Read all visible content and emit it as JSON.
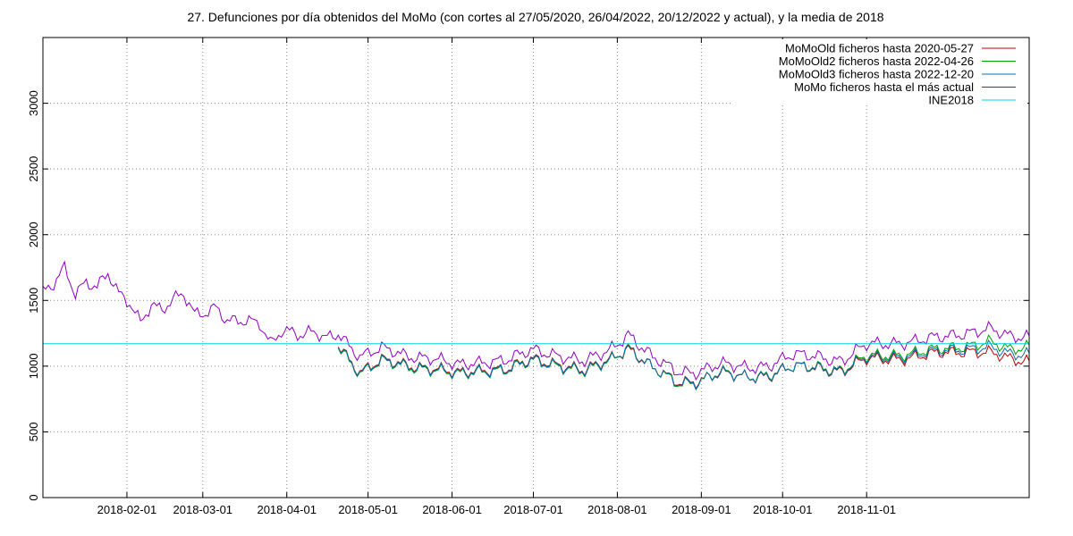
{
  "chart_data": {
    "type": "line",
    "title": "27. Defunciones por día obtenidos del MoMo (con cortes al 27/05/2020, 26/04/2022, 20/12/2022 y actual), y la media de 2018",
    "xlabel": "",
    "ylabel": "",
    "x_range": [
      "2018-01-01",
      "2018-12-31"
    ],
    "ylim": [
      0,
      3500
    ],
    "y_ticks": [
      0,
      500,
      1000,
      1500,
      2000,
      2500,
      3000
    ],
    "x_ticks": [
      "2018-02-01",
      "2018-03-01",
      "2018-04-01",
      "2018-05-01",
      "2018-06-01",
      "2018-07-01",
      "2018-08-01",
      "2018-09-01",
      "2018-10-01",
      "2018-11-01"
    ],
    "grid": true,
    "legend_position": "top-right",
    "series": [
      {
        "name": "MoMoOld ficheros hasta 2020-05-27",
        "color": "#c00000",
        "points": [
          [
            "2018-04-20",
            1160
          ],
          [
            "2018-04-28",
            960
          ],
          [
            "2018-05-06",
            1040
          ],
          [
            "2018-05-15",
            1010
          ],
          [
            "2018-05-24",
            990
          ],
          [
            "2018-06-03",
            940
          ],
          [
            "2018-06-13",
            980
          ],
          [
            "2018-06-22",
            980
          ],
          [
            "2018-07-01",
            1050
          ],
          [
            "2018-07-10",
            1020
          ],
          [
            "2018-07-20",
            960
          ],
          [
            "2018-07-29",
            1050
          ],
          [
            "2018-08-05",
            1140
          ],
          [
            "2018-08-14",
            980
          ],
          [
            "2018-08-23",
            880
          ],
          [
            "2018-08-30",
            890
          ],
          [
            "2018-09-08",
            940
          ],
          [
            "2018-09-17",
            920
          ],
          [
            "2018-09-26",
            930
          ],
          [
            "2018-10-05",
            990
          ],
          [
            "2018-10-14",
            990
          ],
          [
            "2018-10-23",
            960
          ],
          [
            "2018-11-01",
            1050
          ],
          [
            "2018-11-10",
            1060
          ],
          [
            "2018-11-20",
            1070
          ],
          [
            "2018-11-29",
            1100
          ],
          [
            "2018-12-08",
            1120
          ],
          [
            "2018-12-16",
            1100
          ],
          [
            "2018-12-24",
            1050
          ],
          [
            "2018-12-31",
            1040
          ]
        ]
      },
      {
        "name": "MoMoOld2 ficheros hasta 2022-04-26",
        "color": "#00a000",
        "points": [
          [
            "2018-04-20",
            1150
          ],
          [
            "2018-04-28",
            950
          ],
          [
            "2018-05-06",
            1030
          ],
          [
            "2018-05-15",
            1000
          ],
          [
            "2018-05-24",
            980
          ],
          [
            "2018-06-03",
            930
          ],
          [
            "2018-06-13",
            970
          ],
          [
            "2018-06-22",
            970
          ],
          [
            "2018-07-01",
            1040
          ],
          [
            "2018-07-10",
            1010
          ],
          [
            "2018-07-20",
            950
          ],
          [
            "2018-07-29",
            1040
          ],
          [
            "2018-08-05",
            1150
          ],
          [
            "2018-08-14",
            980
          ],
          [
            "2018-08-23",
            870
          ],
          [
            "2018-08-30",
            880
          ],
          [
            "2018-09-08",
            950
          ],
          [
            "2018-09-17",
            920
          ],
          [
            "2018-09-26",
            940
          ],
          [
            "2018-10-05",
            990
          ],
          [
            "2018-10-14",
            1000
          ],
          [
            "2018-10-23",
            970
          ],
          [
            "2018-11-01",
            1070
          ],
          [
            "2018-11-10",
            1090
          ],
          [
            "2018-11-20",
            1100
          ],
          [
            "2018-11-29",
            1130
          ],
          [
            "2018-12-08",
            1160
          ],
          [
            "2018-12-16",
            1180
          ],
          [
            "2018-12-24",
            1120
          ],
          [
            "2018-12-31",
            1160
          ]
        ]
      },
      {
        "name": "MoMoOld3 ficheros hasta 2022-12-20",
        "color": "#0070b0",
        "points": [
          [
            "2018-04-20",
            1155
          ],
          [
            "2018-04-28",
            955
          ],
          [
            "2018-05-06",
            1035
          ],
          [
            "2018-05-15",
            1005
          ],
          [
            "2018-05-24",
            985
          ],
          [
            "2018-06-03",
            935
          ],
          [
            "2018-06-13",
            975
          ],
          [
            "2018-06-22",
            975
          ],
          [
            "2018-07-01",
            1045
          ],
          [
            "2018-07-10",
            1015
          ],
          [
            "2018-07-20",
            955
          ],
          [
            "2018-07-29",
            1045
          ],
          [
            "2018-08-05",
            1150
          ],
          [
            "2018-08-14",
            980
          ],
          [
            "2018-08-23",
            875
          ],
          [
            "2018-08-30",
            885
          ],
          [
            "2018-09-08",
            945
          ],
          [
            "2018-09-17",
            920
          ],
          [
            "2018-09-26",
            935
          ],
          [
            "2018-10-05",
            990
          ],
          [
            "2018-10-14",
            995
          ],
          [
            "2018-10-23",
            965
          ],
          [
            "2018-11-01",
            1060
          ],
          [
            "2018-11-10",
            1075
          ],
          [
            "2018-11-20",
            1085
          ],
          [
            "2018-11-29",
            1115
          ],
          [
            "2018-12-08",
            1140
          ],
          [
            "2018-12-16",
            1140
          ],
          [
            "2018-12-24",
            1085
          ],
          [
            "2018-12-31",
            1100
          ]
        ]
      },
      {
        "name": "MoMo ficheros hasta el más actual",
        "color": "#9000c0",
        "points": [
          [
            "2018-01-01",
            1550
          ],
          [
            "2018-01-05",
            1620
          ],
          [
            "2018-01-09",
            1750
          ],
          [
            "2018-01-13",
            1560
          ],
          [
            "2018-01-17",
            1650
          ],
          [
            "2018-01-21",
            1600
          ],
          [
            "2018-01-25",
            1700
          ],
          [
            "2018-01-29",
            1540
          ],
          [
            "2018-02-02",
            1480
          ],
          [
            "2018-02-06",
            1340
          ],
          [
            "2018-02-10",
            1480
          ],
          [
            "2018-02-14",
            1430
          ],
          [
            "2018-02-18",
            1500
          ],
          [
            "2018-02-22",
            1540
          ],
          [
            "2018-02-26",
            1390
          ],
          [
            "2018-03-02",
            1410
          ],
          [
            "2018-03-06",
            1460
          ],
          [
            "2018-03-10",
            1350
          ],
          [
            "2018-03-14",
            1340
          ],
          [
            "2018-03-18",
            1330
          ],
          [
            "2018-03-22",
            1320
          ],
          [
            "2018-03-26",
            1170
          ],
          [
            "2018-03-30",
            1280
          ],
          [
            "2018-04-03",
            1270
          ],
          [
            "2018-04-07",
            1230
          ],
          [
            "2018-04-11",
            1260
          ],
          [
            "2018-04-15",
            1200
          ],
          [
            "2018-04-20",
            1250
          ],
          [
            "2018-04-28",
            1080
          ],
          [
            "2018-05-06",
            1130
          ],
          [
            "2018-05-15",
            1080
          ],
          [
            "2018-05-24",
            1070
          ],
          [
            "2018-06-03",
            1000
          ],
          [
            "2018-06-13",
            1040
          ],
          [
            "2018-06-22",
            1050
          ],
          [
            "2018-07-01",
            1120
          ],
          [
            "2018-07-10",
            1090
          ],
          [
            "2018-07-20",
            1030
          ],
          [
            "2018-07-29",
            1120
          ],
          [
            "2018-08-05",
            1250
          ],
          [
            "2018-08-14",
            1060
          ],
          [
            "2018-08-23",
            960
          ],
          [
            "2018-08-30",
            960
          ],
          [
            "2018-09-08",
            1010
          ],
          [
            "2018-09-17",
            990
          ],
          [
            "2018-09-26",
            1010
          ],
          [
            "2018-10-05",
            1080
          ],
          [
            "2018-10-14",
            1080
          ],
          [
            "2018-10-23",
            1040
          ],
          [
            "2018-11-01",
            1160
          ],
          [
            "2018-11-10",
            1180
          ],
          [
            "2018-11-20",
            1190
          ],
          [
            "2018-11-29",
            1220
          ],
          [
            "2018-12-08",
            1260
          ],
          [
            "2018-12-16",
            1280
          ],
          [
            "2018-12-24",
            1220
          ],
          [
            "2018-12-31",
            1230
          ]
        ]
      },
      {
        "name": "INE2018",
        "color": "#00d0e0",
        "points": [
          [
            "2018-01-01",
            1170
          ],
          [
            "2018-12-31",
            1170
          ]
        ]
      }
    ]
  }
}
